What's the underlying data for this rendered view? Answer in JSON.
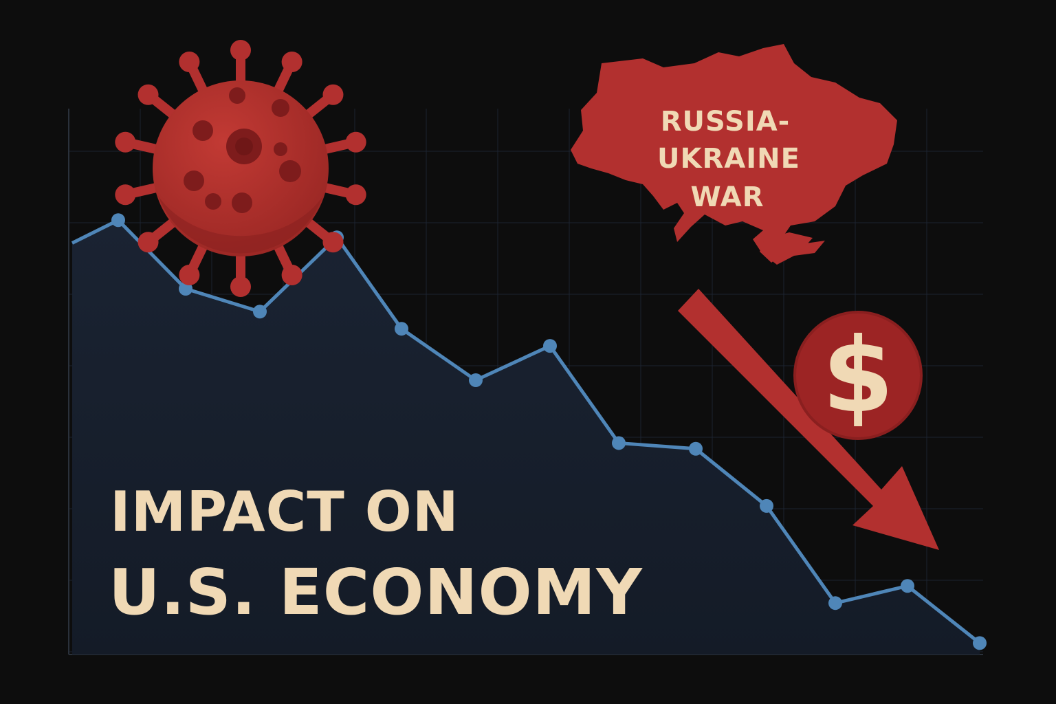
{
  "colors": {
    "background": "#0d0d0d",
    "grid": "#1c2330",
    "area_fill": "#17202e",
    "line": "#4f86b8",
    "accent_red": "#b2302f",
    "dark_red": "#8f2222",
    "cream": "#f0d9b5"
  },
  "map_label": {
    "line1": "RUSSIA-",
    "line2": "UKRAINE",
    "line3": "WAR"
  },
  "headline": {
    "line1": "IMPACT ON",
    "line2": "U.S. ECONOMY"
  },
  "dollar_symbol": "$",
  "icons": [
    "virus-icon",
    "ukraine-map-icon",
    "down-arrow-icon",
    "dollar-coin-icon"
  ],
  "chart_data": {
    "type": "area",
    "trend": "declining",
    "x": [
      0,
      1,
      2,
      3,
      4,
      5,
      6,
      7,
      8,
      9,
      10,
      11,
      12,
      13
    ],
    "values": [
      52,
      56,
      44,
      40,
      53,
      37,
      28,
      34,
      17,
      16,
      6,
      -11,
      -8,
      -18
    ],
    "ylim": [
      -20,
      60
    ],
    "grid": true
  }
}
